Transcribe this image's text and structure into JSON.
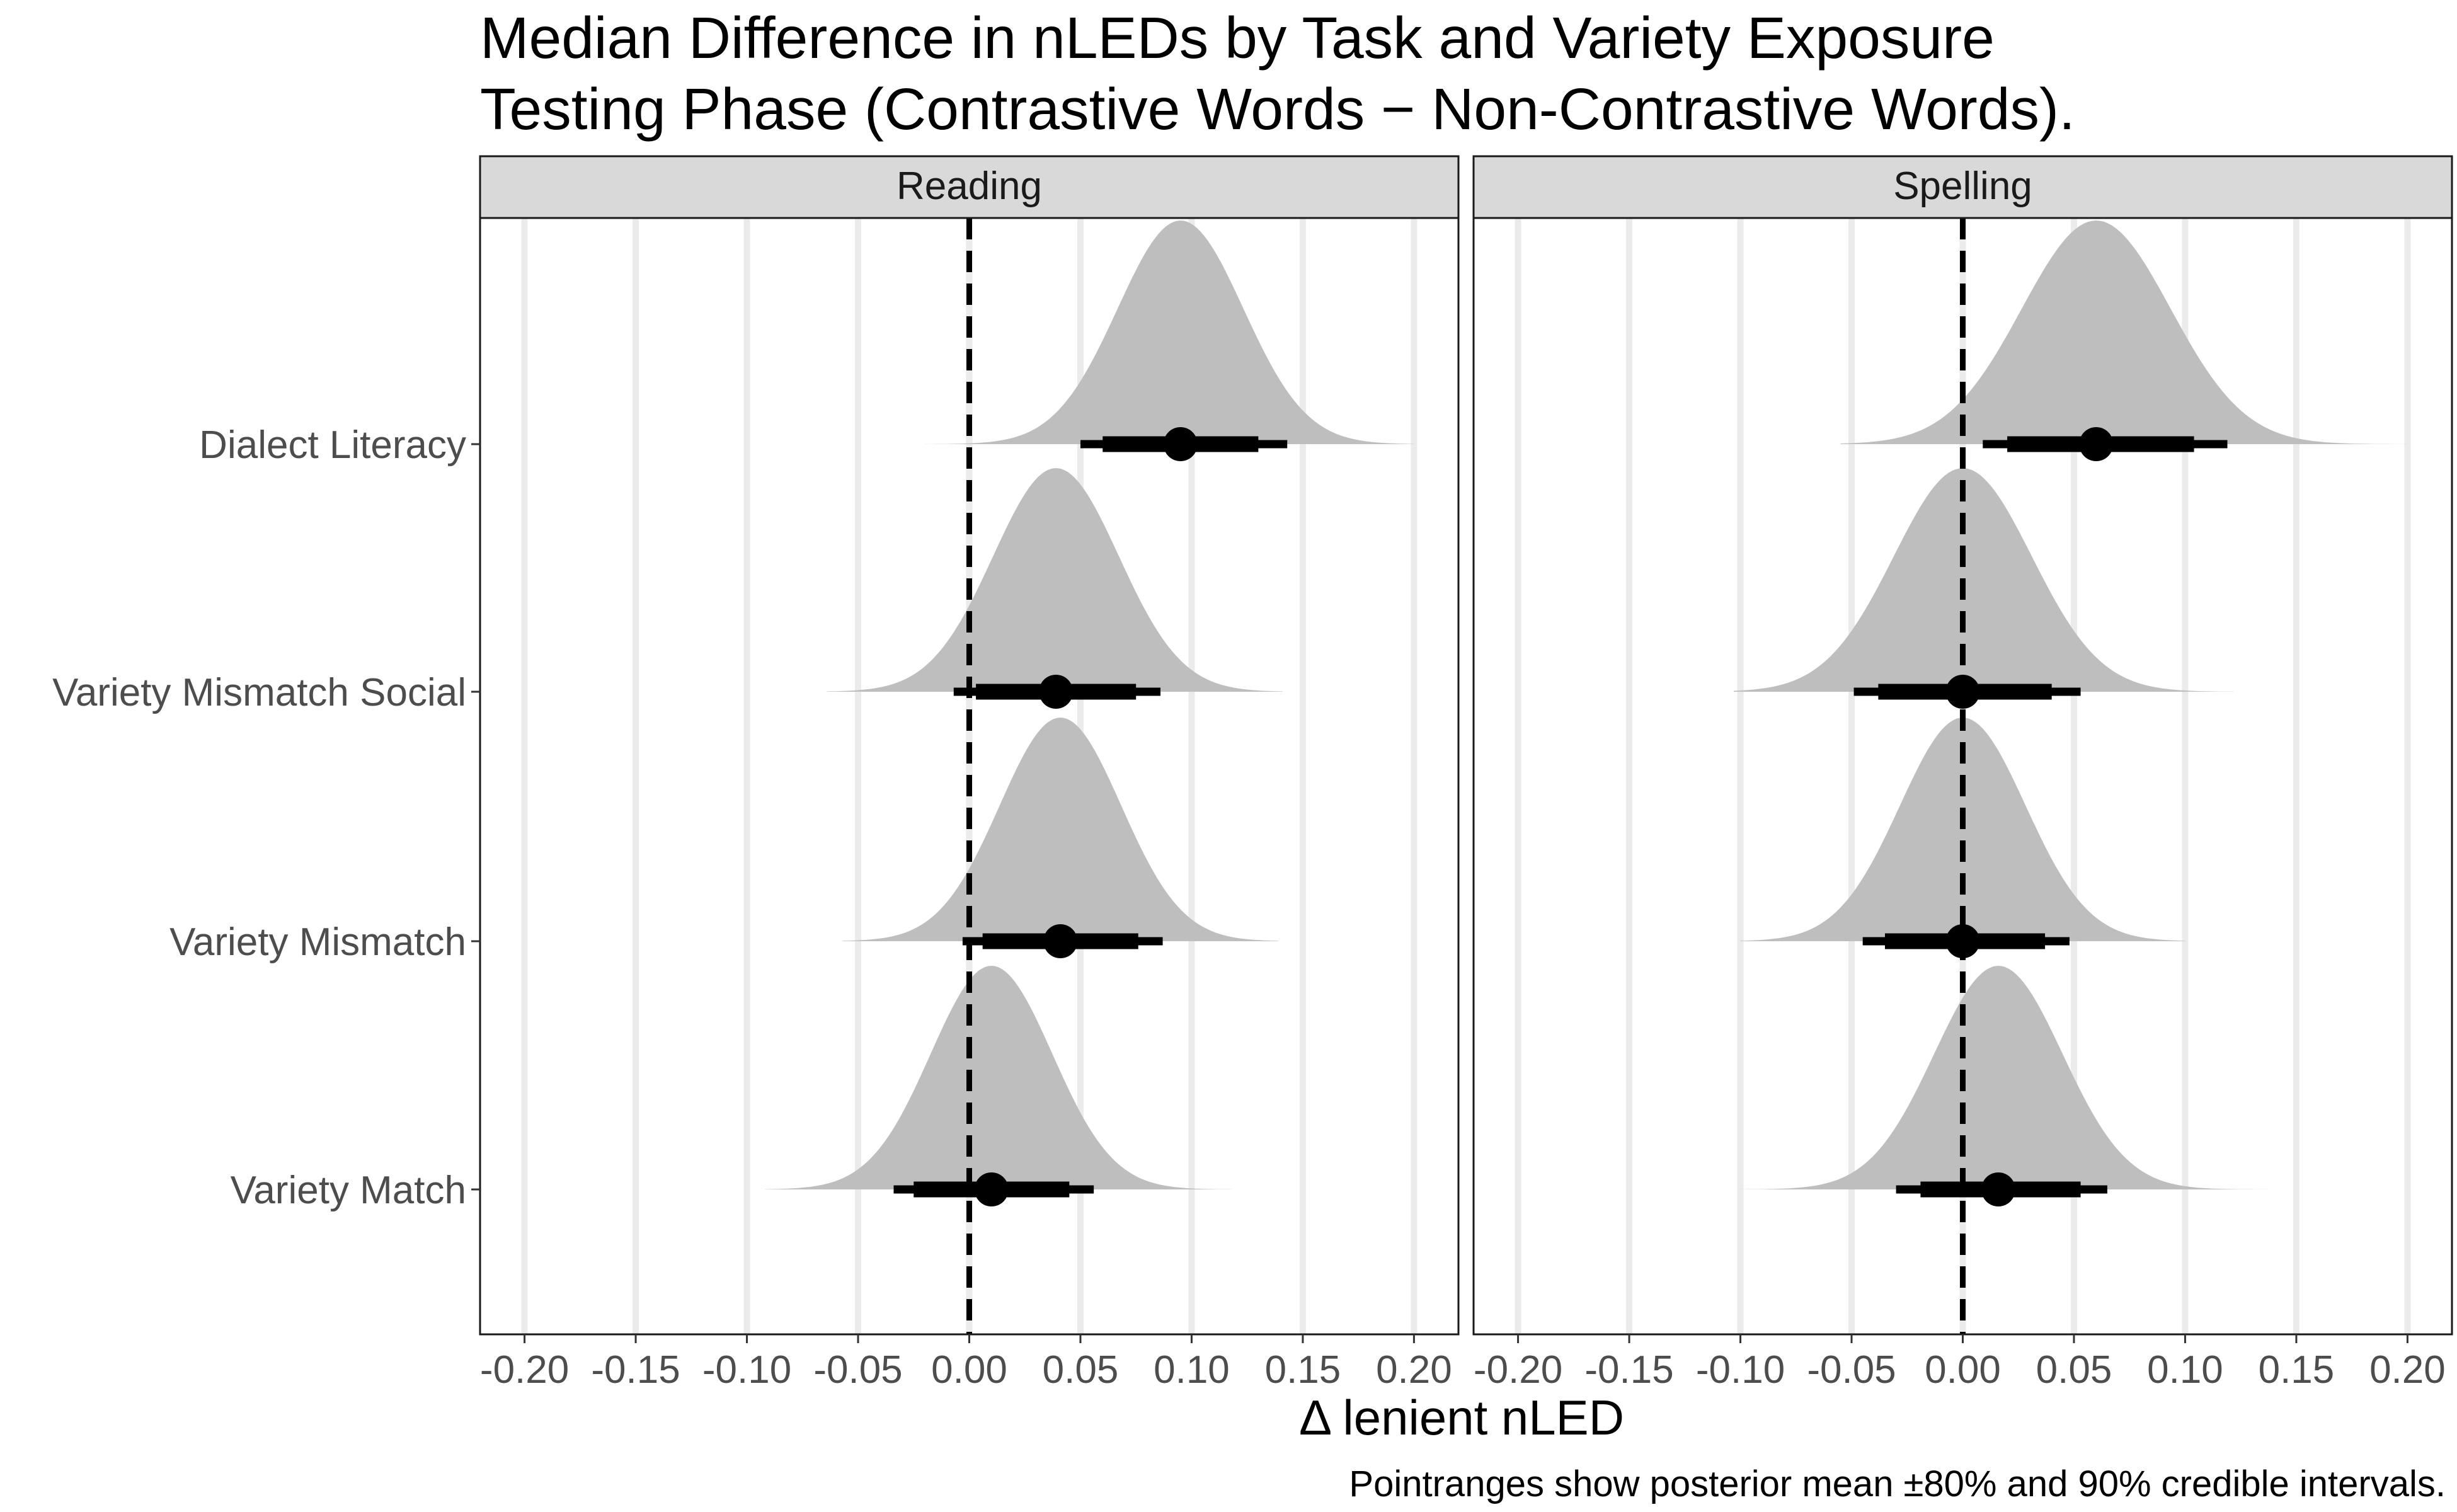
{
  "chart_data": {
    "type": "density-pointrange",
    "title_lines": [
      "Median Difference in nLEDs by Task and Variety Exposure",
      "Testing Phase (Contrastive Words − Non-Contrastive Words)."
    ],
    "xlabel": "Δ lenient nLED",
    "caption": "Pointranges show posterior mean ±80% and 90% credible intervals.",
    "xlim": [
      -0.22,
      0.22
    ],
    "x_ticks": [
      -0.2,
      -0.15,
      -0.1,
      -0.05,
      0.0,
      0.05,
      0.1,
      0.15,
      0.2
    ],
    "x_tick_labels": [
      "-0.20",
      "-0.15",
      "-0.10",
      "-0.05",
      "0.00",
      "0.05",
      "0.10",
      "0.15",
      "0.20"
    ],
    "reference_line": 0,
    "categories": [
      "Variety Match",
      "Variety Mismatch",
      "Variety Mismatch Social",
      "Dialect Literacy"
    ],
    "panels": [
      {
        "name": "Reading",
        "series": [
          {
            "category": "Variety Match",
            "mean": 0.01,
            "ci80": [
              -0.025,
              0.045
            ],
            "ci90": [
              -0.034,
              0.056
            ],
            "dist_range": [
              -0.092,
              0.118
            ]
          },
          {
            "category": "Variety Mismatch",
            "mean": 0.041,
            "ci80": [
              0.006,
              0.076
            ],
            "ci90": [
              -0.003,
              0.087
            ],
            "dist_range": [
              -0.057,
              0.139
            ]
          },
          {
            "category": "Variety Mismatch Social",
            "mean": 0.039,
            "ci80": [
              0.003,
              0.075
            ],
            "ci90": [
              -0.007,
              0.086
            ],
            "dist_range": [
              -0.064,
              0.141
            ]
          },
          {
            "category": "Dialect Literacy",
            "mean": 0.095,
            "ci80": [
              0.06,
              0.13
            ],
            "ci90": [
              0.05,
              0.143
            ],
            "dist_range": [
              -0.02,
              0.2
            ]
          }
        ]
      },
      {
        "name": "Spelling",
        "series": [
          {
            "category": "Variety Match",
            "mean": 0.016,
            "ci80": [
              -0.019,
              0.053
            ],
            "ci90": [
              -0.03,
              0.065
            ],
            "dist_range": [
              -0.1,
              0.138
            ]
          },
          {
            "category": "Variety Mismatch",
            "mean": 0.0,
            "ci80": [
              -0.035,
              0.037
            ],
            "ci90": [
              -0.045,
              0.048
            ],
            "dist_range": [
              -0.1,
              0.1
            ]
          },
          {
            "category": "Variety Mismatch Social",
            "mean": 0.0,
            "ci80": [
              -0.038,
              0.04
            ],
            "ci90": [
              -0.049,
              0.053
            ],
            "dist_range": [
              -0.103,
              0.122
            ]
          },
          {
            "category": "Dialect Literacy",
            "mean": 0.06,
            "ci80": [
              0.02,
              0.104
            ],
            "ci90": [
              0.009,
              0.119
            ],
            "dist_range": [
              -0.055,
              0.2
            ]
          }
        ]
      }
    ],
    "colors": {
      "density": "#bebebe",
      "point": "#000000",
      "strip": "#d9d9d9",
      "grid": "#ebebeb",
      "reference": "#000000"
    },
    "grid": "vertical-major",
    "legend": "none"
  }
}
